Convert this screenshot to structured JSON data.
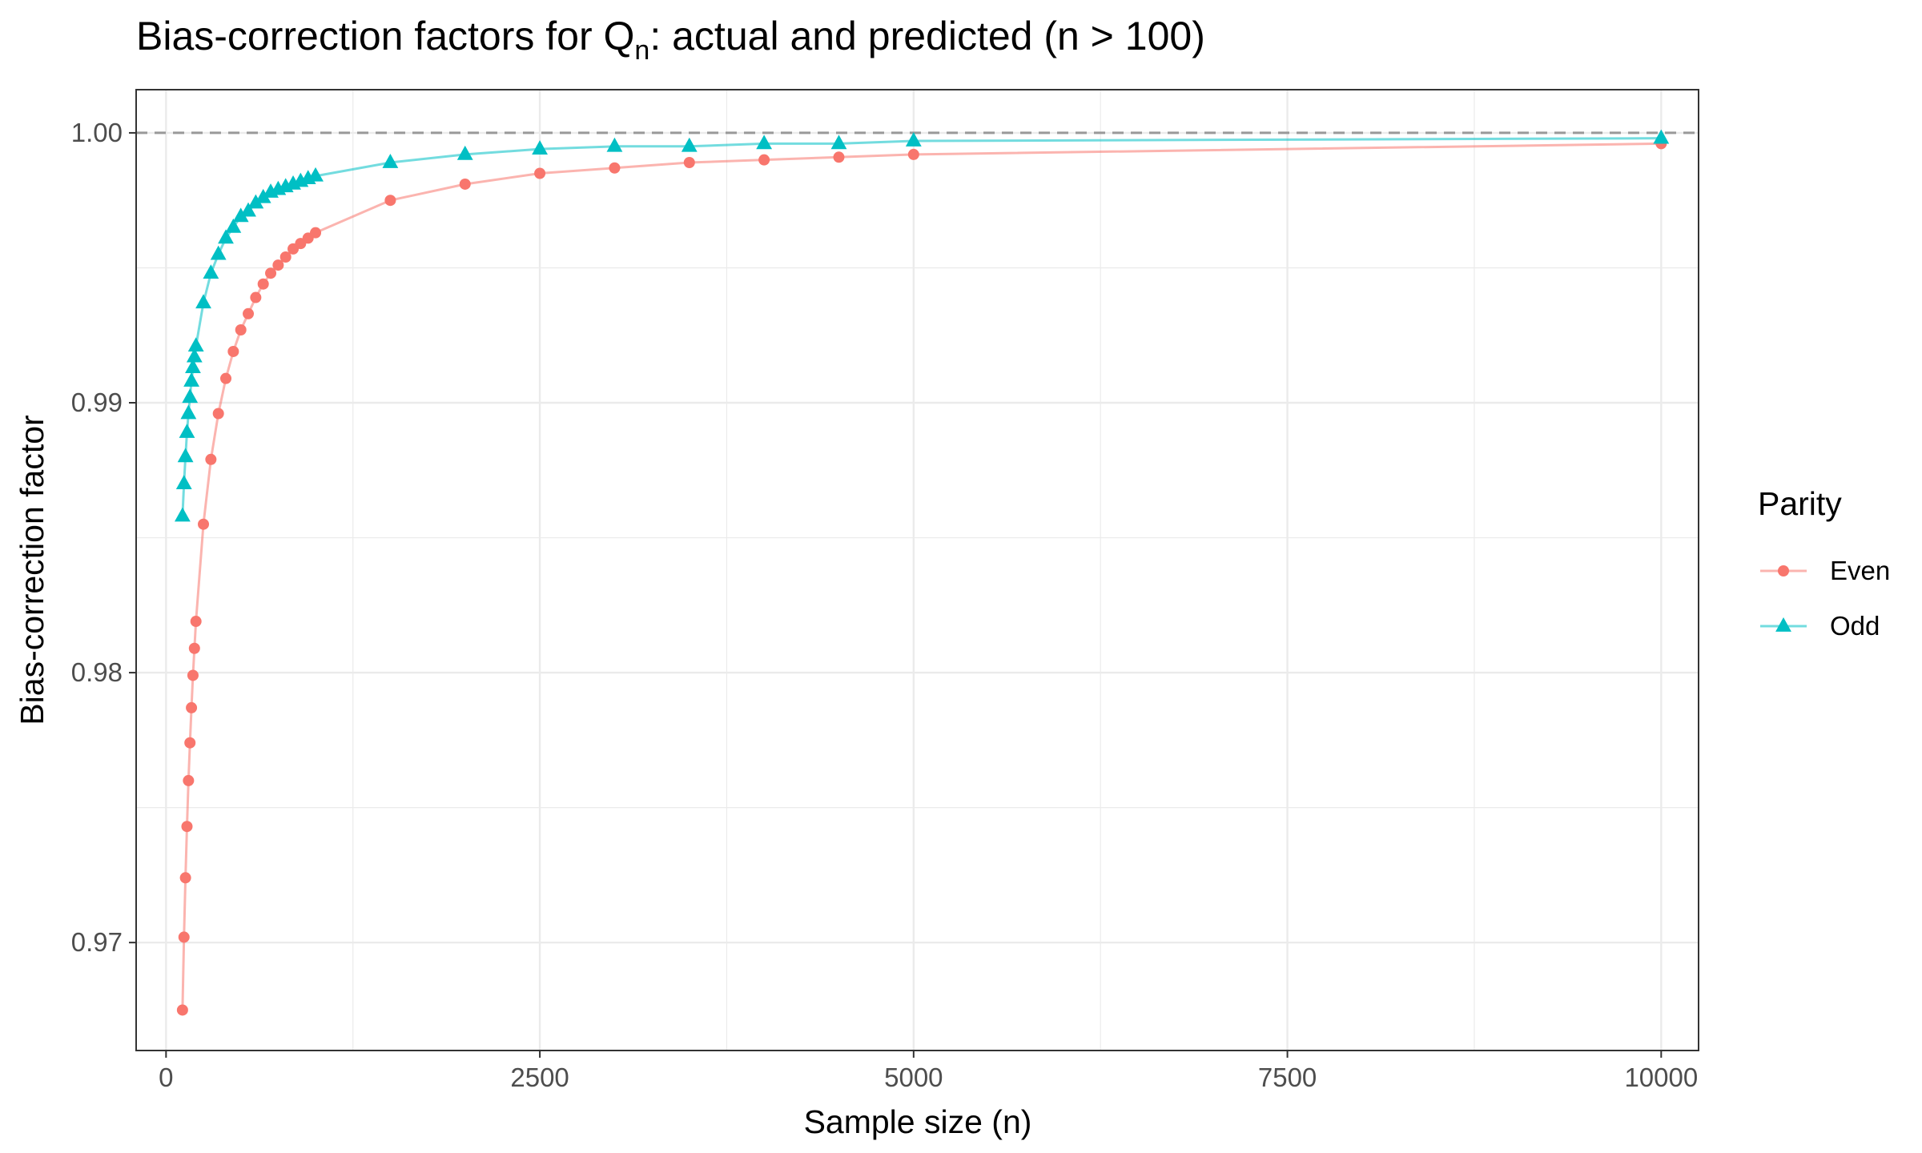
{
  "chart_data": {
    "type": "line",
    "title_main": "Bias-correction factors for Q",
    "title_sub": "n",
    "title_rest": ": actual and predicted (n > 100)",
    "xlabel": "Sample size (n)",
    "ylabel": "Bias-correction factor",
    "xlim": [
      -200,
      10250
    ],
    "ylim": [
      0.966,
      1.0016
    ],
    "xticks": [
      0,
      2500,
      5000,
      7500,
      10000
    ],
    "xtick_labels": [
      "0",
      "2500",
      "5000",
      "7500",
      "10000"
    ],
    "yticks": [
      0.97,
      0.98,
      0.99,
      1.0
    ],
    "ytick_labels": [
      "0.97",
      "0.98",
      "0.99",
      "1.00"
    ],
    "reference_line": {
      "y": 1.0,
      "style": "dashed",
      "color": "#999999"
    },
    "grid": true,
    "legend": {
      "title": "Parity",
      "placement": "right"
    },
    "series": [
      {
        "name": "Even",
        "color": "#F8766D",
        "marker": "circle",
        "points": [
          [
            110,
            0.9675
          ],
          [
            120,
            0.9702
          ],
          [
            130,
            0.9724
          ],
          [
            140,
            0.9743
          ],
          [
            150,
            0.976
          ],
          [
            160,
            0.9774
          ],
          [
            170,
            0.9787
          ],
          [
            180,
            0.9799
          ],
          [
            190,
            0.9809
          ],
          [
            200,
            0.9819
          ],
          [
            250,
            0.9855
          ],
          [
            300,
            0.9879
          ],
          [
            350,
            0.9896
          ],
          [
            400,
            0.9909
          ],
          [
            450,
            0.9919
          ],
          [
            500,
            0.9927
          ],
          [
            550,
            0.9933
          ],
          [
            600,
            0.9939
          ],
          [
            650,
            0.9944
          ],
          [
            700,
            0.9948
          ],
          [
            750,
            0.9951
          ],
          [
            800,
            0.9954
          ],
          [
            850,
            0.9957
          ],
          [
            900,
            0.9959
          ],
          [
            950,
            0.9961
          ],
          [
            1000,
            0.9963
          ],
          [
            1500,
            0.9975
          ],
          [
            2000,
            0.9981
          ],
          [
            2500,
            0.9985
          ],
          [
            3000,
            0.9987
          ],
          [
            3500,
            0.9989
          ],
          [
            4000,
            0.999
          ],
          [
            4500,
            0.9991
          ],
          [
            5000,
            0.9992
          ],
          [
            10000,
            0.9996
          ]
        ]
      },
      {
        "name": "Odd",
        "color": "#00BFC4",
        "marker": "triangle",
        "points": [
          [
            110,
            0.9858
          ],
          [
            120,
            0.987
          ],
          [
            130,
            0.988
          ],
          [
            140,
            0.9889
          ],
          [
            150,
            0.9896
          ],
          [
            160,
            0.9902
          ],
          [
            170,
            0.9908
          ],
          [
            180,
            0.9913
          ],
          [
            190,
            0.9917
          ],
          [
            200,
            0.9921
          ],
          [
            250,
            0.9937
          ],
          [
            300,
            0.9948
          ],
          [
            350,
            0.9955
          ],
          [
            400,
            0.9961
          ],
          [
            450,
            0.9965
          ],
          [
            500,
            0.9969
          ],
          [
            550,
            0.9971
          ],
          [
            600,
            0.9974
          ],
          [
            650,
            0.9976
          ],
          [
            700,
            0.9978
          ],
          [
            750,
            0.9979
          ],
          [
            800,
            0.998
          ],
          [
            850,
            0.9981
          ],
          [
            900,
            0.9982
          ],
          [
            950,
            0.9983
          ],
          [
            1000,
            0.9984
          ],
          [
            1500,
            0.9989
          ],
          [
            2000,
            0.9992
          ],
          [
            2500,
            0.9994
          ],
          [
            3000,
            0.9995
          ],
          [
            3500,
            0.9995
          ],
          [
            4000,
            0.9996
          ],
          [
            4500,
            0.9996
          ],
          [
            5000,
            0.9997
          ],
          [
            10000,
            0.9998
          ]
        ]
      }
    ]
  }
}
